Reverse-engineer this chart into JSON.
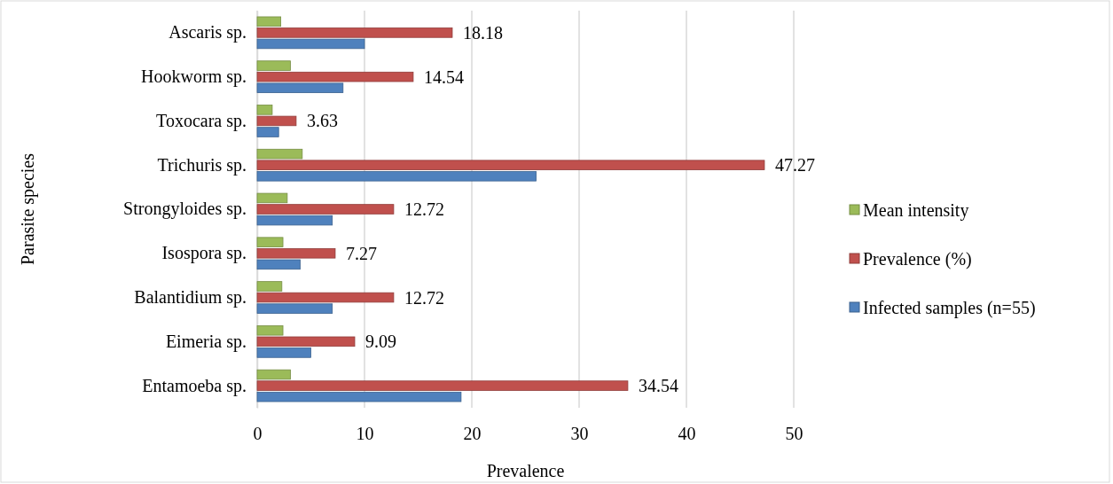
{
  "chart_data": {
    "type": "bar",
    "orientation": "horizontal",
    "xlabel": "Prevalence",
    "ylabel": "Parasite species",
    "categories": [
      "Ascaris sp.",
      "Hookworm sp.",
      "Toxocara sp.",
      "Trichuris sp.",
      "Strongyloides sp.",
      "Isospora sp.",
      "Balantidium sp.",
      "Eimeria sp.",
      "Entamoeba sp."
    ],
    "series": [
      {
        "name": "Mean intensity",
        "color": "#9bbb59",
        "values": [
          2.2,
          3.1,
          1.4,
          4.2,
          2.8,
          2.4,
          2.3,
          2.4,
          3.1
        ]
      },
      {
        "name": "Prevalence (%)",
        "color": "#c0504d",
        "values": [
          18.18,
          14.54,
          3.63,
          47.27,
          12.72,
          7.27,
          12.72,
          9.09,
          34.54
        ],
        "value_labels": [
          "18.18",
          "14.54",
          "3.63",
          "47.27",
          "12.72",
          "7.27",
          "12.72",
          "9.09",
          "34.54"
        ]
      },
      {
        "name": "Infected samples (n=55)",
        "color": "#4f81bd",
        "values": [
          10,
          8,
          2,
          26,
          7,
          4,
          7,
          5,
          19
        ]
      }
    ],
    "xlim": [
      0,
      50
    ],
    "xticks": [
      0,
      10,
      20,
      30,
      40,
      50
    ],
    "grid": "x",
    "legend": "right"
  }
}
